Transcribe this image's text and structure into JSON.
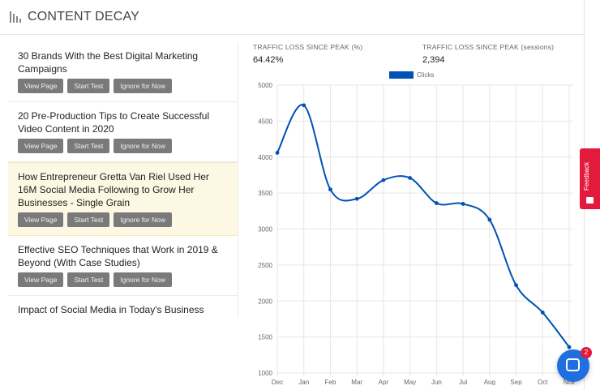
{
  "panel": {
    "title": "CONTENT DECAY"
  },
  "items": [
    {
      "title": "30 Brands With the Best Digital Marketing Campaigns",
      "highlight": false
    },
    {
      "title": "20 Pre-Production Tips to Create Successful Video Content in 2020",
      "highlight": false
    },
    {
      "title": "How Entrepreneur Gretta Van Riel Used Her 16M Social Media Following to Grow Her Businesses - Single Grain",
      "highlight": true
    },
    {
      "title": "Effective SEO Techniques that Work in 2019 & Beyond (With Case Studies)",
      "highlight": false
    },
    {
      "title": "Impact of Social Media in Today's Business World - Single Grain",
      "highlight": false
    }
  ],
  "buttons": {
    "view": "View Page",
    "test": "Start Test",
    "ignore": "Ignore for Now"
  },
  "stats": {
    "loss_pct_label": "TRAFFIC LOSS SINCE PEAK (%)",
    "loss_pct_value": "64.42%",
    "loss_sessions_label": "TRAFFIC LOSS SINCE PEAK (sessions)",
    "loss_sessions_value": "2,394"
  },
  "chart_data": {
    "type": "line",
    "categories": [
      "Dec",
      "Jan",
      "Feb",
      "Mar",
      "Apr",
      "May",
      "Jun",
      "Jul",
      "Aug",
      "Sep",
      "Oct",
      "Nov"
    ],
    "series": [
      {
        "name": "Clicks",
        "color": "#0052b4",
        "values": [
          4060,
          4720,
          3550,
          3420,
          3680,
          3710,
          3360,
          3350,
          3130,
          2220,
          1840,
          1360
        ]
      }
    ],
    "yticks": [
      1000,
      1500,
      2000,
      2500,
      3000,
      3500,
      4000,
      4500,
      5000
    ],
    "ylim": [
      1000,
      5000
    ],
    "legend": "top",
    "grid": true
  },
  "feedback": {
    "label": "Feedback"
  },
  "chat": {
    "badge": "2",
    "icon": "chat-icon"
  }
}
